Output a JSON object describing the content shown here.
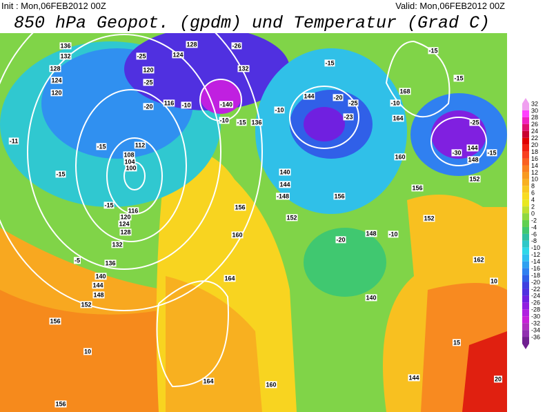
{
  "header": {
    "init": "Init : Mon,06FEB2012 00Z",
    "valid": "Valid: Mon,06FEB2012 00Z",
    "title": "850 hPa Geopot. (gpdm) und Temperatur (Grad C)"
  },
  "map": {
    "contour_labels": [
      "136",
      "132",
      "128",
      "124",
      "120",
      "-25",
      "120",
      "-25",
      "124",
      "128",
      "-26",
      "132",
      "-20",
      "116",
      "-10",
      "-140",
      "-10",
      "-15",
      "136",
      "-10",
      "144",
      "-20",
      "-25",
      "-23",
      "-15",
      "-15",
      "168",
      "-10",
      "-15",
      "164",
      "-25",
      "144",
      "-30",
      "148",
      "-15",
      "160",
      "152",
      "156",
      "-15",
      "112",
      "108",
      "104",
      "100",
      "-15",
      "-15",
      "116",
      "120",
      "124",
      "128",
      "132",
      "-5",
      "136",
      "140",
      "144",
      "148",
      "152",
      "156",
      "10",
      "156",
      "164",
      "160",
      "156",
      "160",
      "164",
      "140",
      "144",
      "-148",
      "152",
      "156",
      "148",
      "-10",
      "-20",
      "152",
      "162",
      "140",
      "144",
      "15",
      "10",
      "20",
      "-11"
    ]
  },
  "colorbar": {
    "ticks": [
      32,
      30,
      28,
      26,
      24,
      22,
      20,
      18,
      16,
      14,
      12,
      10,
      8,
      6,
      4,
      2,
      0,
      -2,
      -4,
      -6,
      -8,
      -10,
      -12,
      -14,
      -16,
      -18,
      -20,
      -22,
      -24,
      -26,
      -28,
      -30,
      -32,
      -34,
      -36
    ],
    "colors": [
      "#f0a0f0",
      "#ff40ff",
      "#f020c0",
      "#e01070",
      "#c80030",
      "#e00000",
      "#f02010",
      "#f84020",
      "#fa6020",
      "#fa8020",
      "#f89a20",
      "#f8b020",
      "#f8c820",
      "#f8dc20",
      "#e8e820",
      "#c0e030",
      "#90d840",
      "#60d050",
      "#40c870",
      "#30c0a0",
      "#30c8c8",
      "#30d8e8",
      "#30c0f0",
      "#30a0f0",
      "#3080f0",
      "#3060e8",
      "#4040e0",
      "#5030e0",
      "#7020e0",
      "#9020e0",
      "#b020e0",
      "#c820d8",
      "#b030c0",
      "#9030b0",
      "#702090"
    ]
  }
}
